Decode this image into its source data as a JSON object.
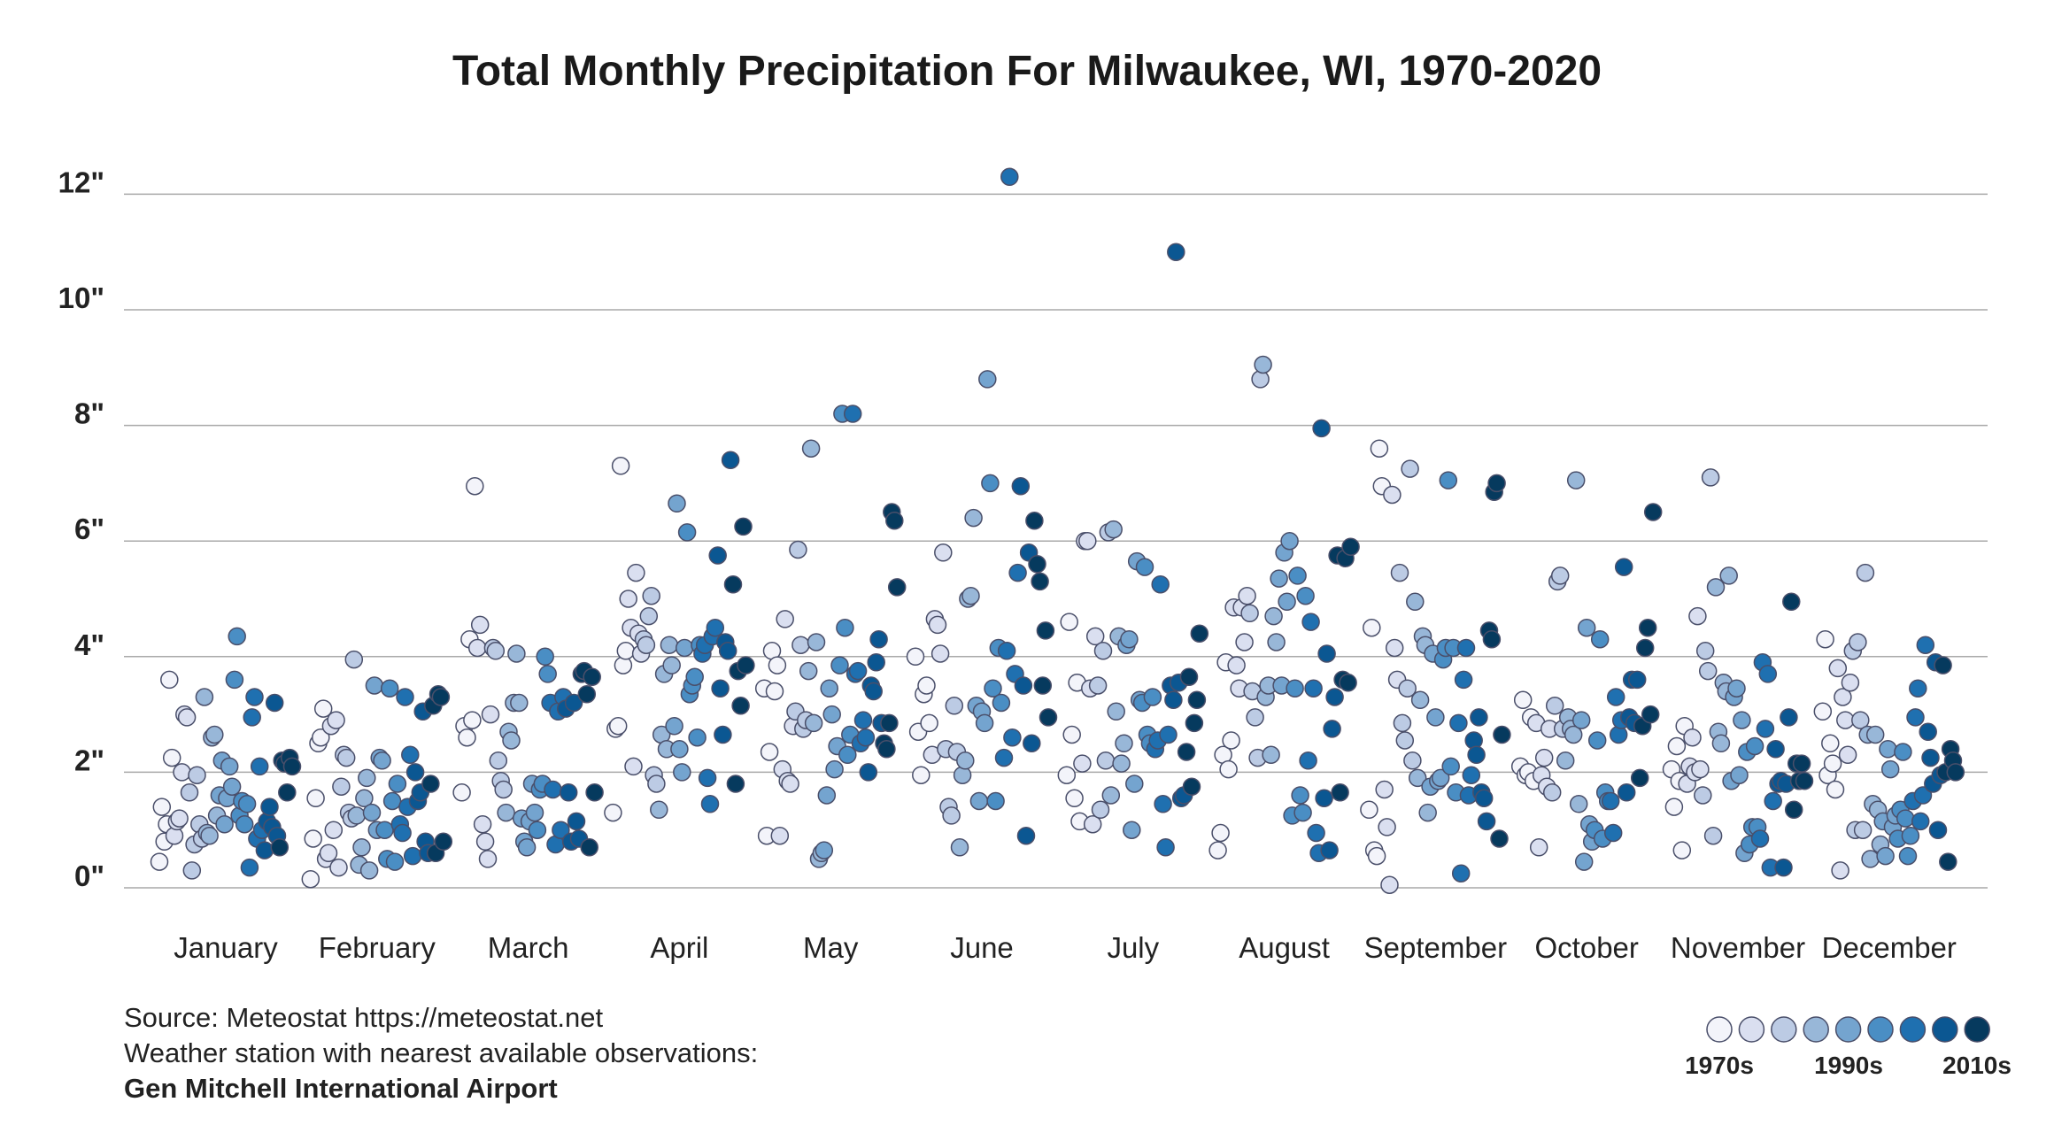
{
  "chart_data": {
    "type": "scatter",
    "title": "Total Monthly Precipitation For Milwaukee, WI, 1970-2020",
    "ylabel": "",
    "xlabel": "",
    "ylim": [
      0,
      12.4
    ],
    "yticks": [
      0,
      2,
      4,
      6,
      8,
      10,
      12
    ],
    "ytick_labels": [
      "0\"",
      "2\"",
      "4\"",
      "6\"",
      "8\"",
      "10\"",
      "12\""
    ],
    "months": [
      "January",
      "February",
      "March",
      "April",
      "May",
      "June",
      "July",
      "August",
      "September",
      "October",
      "November",
      "December"
    ],
    "decade_colors": [
      "#f3f4fa",
      "#dadff0",
      "#bccbe4",
      "#98b7d8",
      "#74a4cf",
      "#4a8ec4",
      "#1f70b0",
      "#0b5792",
      "#063a5e"
    ],
    "series": [
      {
        "month": "January",
        "values": [
          0.45,
          1.4,
          0.8,
          1.1,
          3.6,
          2.25,
          0.9,
          1.15,
          1.2,
          2.0,
          3.0,
          2.95,
          1.65,
          0.3,
          0.75,
          1.95,
          1.1,
          0.85,
          3.3,
          0.95,
          0.9,
          2.6,
          2.65,
          1.25,
          1.6,
          2.2,
          1.1,
          1.55,
          2.1,
          1.75,
          3.6,
          4.35,
          1.25,
          1.5,
          1.1,
          1.45,
          0.35,
          2.95,
          3.3,
          0.85,
          2.1,
          1.0,
          0.65,
          1.15,
          1.4,
          1.05,
          3.2,
          0.9,
          0.7,
          2.2,
          2.15,
          1.65,
          2.25,
          2.1
        ]
      },
      {
        "month": "February",
        "values": [
          0.15,
          0.85,
          1.55,
          2.5,
          2.6,
          3.1,
          0.5,
          0.6,
          2.8,
          1.0,
          2.9,
          0.35,
          1.75,
          2.3,
          2.25,
          1.3,
          1.2,
          3.95,
          1.25,
          0.4,
          0.7,
          1.55,
          1.9,
          0.3,
          1.3,
          3.5,
          1.0,
          2.25,
          2.2,
          1.0,
          0.5,
          3.45,
          1.5,
          0.45,
          1.8,
          1.1,
          0.95,
          3.3,
          1.4,
          2.3,
          0.55,
          2.0,
          1.5,
          1.65,
          3.05,
          0.8,
          0.6,
          1.8,
          3.15,
          0.6,
          3.35,
          3.3,
          0.8
        ]
      },
      {
        "month": "March",
        "values": [
          1.65,
          2.8,
          2.6,
          4.3,
          2.9,
          6.95,
          4.15,
          4.55,
          1.1,
          0.8,
          0.5,
          3.0,
          4.15,
          4.1,
          2.2,
          1.85,
          1.7,
          1.3,
          2.7,
          2.55,
          3.2,
          4.05,
          3.2,
          1.2,
          0.8,
          0.7,
          1.15,
          1.8,
          1.3,
          1.0,
          1.7,
          1.8,
          4.0,
          3.7,
          3.2,
          1.7,
          0.75,
          3.05,
          1.0,
          3.3,
          3.1,
          1.65,
          0.8,
          3.2,
          1.15,
          0.85,
          3.7,
          3.75,
          3.35,
          0.7,
          3.65,
          1.65
        ]
      },
      {
        "month": "April",
        "values": [
          1.3,
          2.75,
          2.8,
          7.3,
          3.85,
          4.1,
          5.0,
          4.5,
          2.1,
          5.45,
          4.4,
          4.05,
          4.3,
          4.2,
          4.7,
          5.05,
          1.95,
          1.8,
          1.35,
          2.65,
          3.7,
          2.4,
          4.2,
          3.85,
          2.8,
          6.65,
          2.4,
          2.0,
          4.15,
          6.15,
          3.35,
          3.5,
          3.65,
          2.6,
          4.2,
          4.05,
          4.2,
          1.9,
          1.45,
          4.35,
          4.5,
          5.75,
          3.45,
          2.65,
          4.25,
          4.1,
          7.4,
          5.25,
          1.8,
          3.75,
          3.15,
          6.25,
          3.85
        ]
      },
      {
        "month": "May",
        "values": [
          3.45,
          0.9,
          2.35,
          4.1,
          3.4,
          3.85,
          0.9,
          2.05,
          4.65,
          1.85,
          1.8,
          2.8,
          3.05,
          5.85,
          4.2,
          2.75,
          2.9,
          3.75,
          7.6,
          2.85,
          4.25,
          0.5,
          0.6,
          0.65,
          1.6,
          3.45,
          3.0,
          2.05,
          2.45,
          3.85,
          8.2,
          4.5,
          2.3,
          2.65,
          8.2,
          3.7,
          3.75,
          2.5,
          2.9,
          2.6,
          2.0,
          3.5,
          3.4,
          3.9,
          4.3,
          2.85,
          2.5,
          2.4,
          2.85,
          6.5,
          6.35,
          5.2
        ]
      },
      {
        "month": "June",
        "values": [
          4.0,
          2.7,
          1.95,
          3.35,
          3.5,
          2.85,
          2.3,
          4.65,
          4.55,
          4.05,
          5.8,
          2.4,
          1.4,
          1.25,
          3.15,
          2.35,
          0.7,
          1.95,
          2.2,
          5.0,
          5.05,
          6.4,
          3.15,
          1.5,
          3.05,
          2.85,
          8.8,
          7.0,
          3.45,
          1.5,
          4.15,
          3.2,
          2.25,
          4.1,
          12.3,
          2.6,
          3.7,
          5.45,
          6.95,
          3.5,
          0.9,
          5.8,
          2.5,
          6.35,
          5.6,
          5.3,
          3.5,
          4.45,
          2.95
        ]
      },
      {
        "month": "July",
        "values": [
          1.95,
          4.6,
          2.65,
          1.55,
          3.55,
          1.15,
          2.15,
          6.0,
          6.0,
          3.45,
          1.1,
          4.35,
          3.5,
          1.35,
          4.1,
          2.2,
          6.15,
          1.6,
          6.2,
          3.05,
          4.35,
          2.15,
          2.5,
          4.2,
          4.3,
          1.0,
          1.8,
          5.65,
          3.25,
          3.2,
          5.55,
          2.65,
          2.5,
          3.3,
          2.4,
          2.55,
          5.25,
          1.45,
          0.7,
          2.65,
          3.5,
          3.25,
          11.0,
          3.55,
          1.55,
          1.6,
          2.35,
          3.65,
          1.75,
          2.85,
          3.25,
          4.4
        ]
      },
      {
        "month": "August",
        "values": [
          0.65,
          0.95,
          2.3,
          3.9,
          2.05,
          2.55,
          4.85,
          3.85,
          3.45,
          4.85,
          4.25,
          5.05,
          4.75,
          3.4,
          2.95,
          2.25,
          8.8,
          9.05,
          3.3,
          3.5,
          2.3,
          4.7,
          4.25,
          5.35,
          3.5,
          5.8,
          4.95,
          6.0,
          1.25,
          3.45,
          5.4,
          1.6,
          1.3,
          5.05,
          2.2,
          4.6,
          3.45,
          0.95,
          0.6,
          7.95,
          1.55,
          4.05,
          0.65,
          2.75,
          3.3,
          5.75,
          1.65,
          3.6,
          5.7,
          3.55,
          5.9
        ]
      },
      {
        "month": "September",
        "values": [
          1.35,
          4.5,
          0.65,
          0.55,
          7.6,
          6.95,
          1.7,
          1.05,
          0.05,
          6.8,
          4.15,
          3.6,
          5.45,
          2.85,
          2.55,
          3.45,
          7.25,
          2.2,
          4.95,
          1.9,
          3.25,
          4.35,
          4.2,
          1.3,
          1.75,
          4.05,
          2.95,
          1.85,
          1.9,
          3.95,
          4.15,
          7.05,
          2.1,
          4.15,
          1.65,
          2.85,
          0.25,
          3.6,
          4.15,
          1.6,
          1.95,
          2.55,
          2.3,
          2.95,
          1.65,
          1.55,
          1.15,
          4.45,
          4.3,
          6.85,
          7.0,
          0.85,
          2.65
        ]
      },
      {
        "month": "October",
        "values": [
          2.1,
          3.25,
          1.95,
          2.0,
          2.95,
          1.85,
          2.85,
          0.7,
          1.95,
          2.25,
          1.75,
          2.75,
          1.65,
          3.15,
          5.3,
          5.4,
          2.75,
          2.2,
          2.95,
          2.75,
          2.65,
          7.05,
          1.45,
          2.9,
          0.45,
          4.5,
          1.1,
          0.8,
          1.0,
          2.55,
          4.3,
          0.85,
          1.65,
          1.5,
          1.5,
          0.95,
          3.3,
          2.65,
          2.9,
          5.55,
          1.65,
          2.95,
          3.6,
          2.85,
          3.6,
          1.9,
          2.8,
          4.15,
          4.5,
          3.0,
          6.5
        ]
      },
      {
        "month": "November",
        "values": [
          2.05,
          1.4,
          2.45,
          1.85,
          0.65,
          2.8,
          1.8,
          2.1,
          2.6,
          2.0,
          4.7,
          2.05,
          1.6,
          4.1,
          3.75,
          7.1,
          0.9,
          5.2,
          2.7,
          2.5,
          3.55,
          3.4,
          5.4,
          1.85,
          3.3,
          3.45,
          1.95,
          2.9,
          0.6,
          2.35,
          0.75,
          1.05,
          2.45,
          1.05,
          0.85,
          3.9,
          2.75,
          3.7,
          0.35,
          1.5,
          2.4,
          1.8,
          1.85,
          0.35,
          1.8,
          2.95,
          4.95,
          1.35,
          2.15,
          1.85,
          2.15,
          1.85
        ]
      },
      {
        "month": "December",
        "values": [
          3.05,
          4.3,
          1.95,
          2.5,
          2.15,
          1.7,
          3.8,
          0.3,
          3.3,
          2.9,
          2.3,
          3.55,
          4.1,
          1.0,
          4.25,
          2.9,
          1.0,
          5.45,
          2.65,
          0.5,
          1.45,
          2.65,
          1.35,
          0.75,
          1.15,
          0.55,
          2.4,
          2.05,
          1.05,
          1.25,
          0.85,
          1.35,
          2.35,
          1.2,
          0.55,
          0.9,
          1.5,
          2.95,
          3.45,
          1.15,
          1.6,
          4.2,
          2.7,
          2.25,
          1.8,
          3.9,
          1.0,
          1.95,
          3.85,
          2.0,
          0.45,
          2.4,
          2.2,
          2.0
        ]
      }
    ],
    "legend": {
      "labels": [
        "1970s",
        "1990s",
        "2010s"
      ],
      "swatch_count": 9
    }
  },
  "footer": {
    "source": "Source: Meteostat https://meteostat.net",
    "station_note": "Weather station with nearest available observations:",
    "station_name": "Gen Mitchell International Airport"
  }
}
